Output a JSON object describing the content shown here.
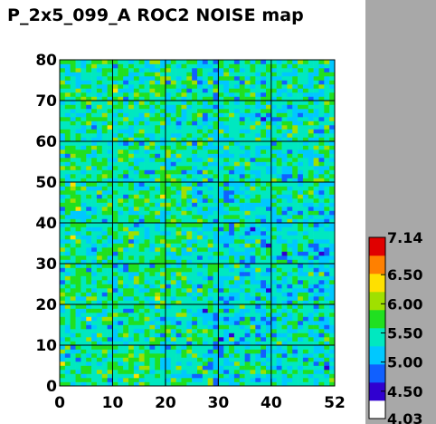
{
  "title": "P_2x5_099_A ROC2 NOISE map",
  "chart_data": {
    "type": "heatmap",
    "title": "P_2x5_099_A ROC2 NOISE map",
    "x_range": [
      0,
      52
    ],
    "y_range": [
      0,
      80
    ],
    "x_ticks": [
      "0",
      "10",
      "20",
      "30",
      "40",
      "52"
    ],
    "y_ticks": [
      "0",
      "10",
      "20",
      "30",
      "40",
      "50",
      "60",
      "70",
      "80"
    ],
    "grid": true,
    "z_range": [
      4.03,
      7.14
    ],
    "colorbar_ticks": [
      "4.03",
      "4.50",
      "5.00",
      "5.50",
      "6.00",
      "6.50",
      "7.14"
    ],
    "colorbar_placement": "right",
    "typical_value": 5.5,
    "colors": {
      "scale": [
        "#ffffff",
        "#3000d0",
        "#1060ff",
        "#00c8ff",
        "#00e8c0",
        "#20e020",
        "#a0e000",
        "#ffe000",
        "#ff8000",
        "#e00000"
      ],
      "grid_line": "#000000",
      "side_panel": "#a8a8a8"
    }
  }
}
